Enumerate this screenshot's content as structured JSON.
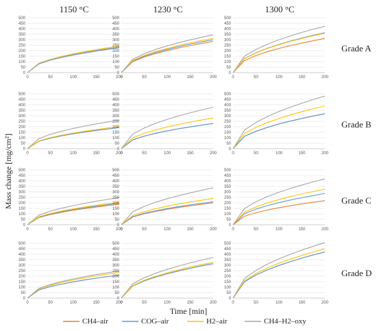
{
  "chart_data": {
    "type": "line",
    "ylabel": "Mass change [mg/cm²]",
    "xlabel": "Time [min]",
    "columns": [
      "1150 °C",
      "1230 °C",
      "1300 °C"
    ],
    "rows": [
      "Grade A",
      "Grade B",
      "Grade C",
      "Grade D"
    ],
    "xlim": [
      0,
      200
    ],
    "ylim": [
      0,
      500
    ],
    "xticks": [
      0,
      50,
      100,
      150,
      200
    ],
    "yticks": [
      0,
      50,
      100,
      150,
      200,
      250,
      300,
      350,
      400,
      450,
      500
    ],
    "grid": true,
    "legend_position": "bottom",
    "series": [
      {
        "name": "CH4–air",
        "color": "#ed7d31"
      },
      {
        "name": "COG–air",
        "color": "#5b9bd5"
      },
      {
        "name": "H2–air",
        "color": "#ffc000"
      },
      {
        "name": "CH4–H2–oxy",
        "color": "#a5a5a5"
      }
    ],
    "x": [
      0,
      25,
      50,
      75,
      100,
      125,
      150,
      175,
      200
    ],
    "panels": [
      {
        "row": "Grade A",
        "column": "1150 °C",
        "series": [
          {
            "name": "CH4–air",
            "values": [
              0,
              80,
              114,
              139,
              161,
              180,
              197,
              213,
              228
            ]
          },
          {
            "name": "COG–air",
            "values": [
              0,
              80,
              114,
              139,
              161,
              180,
              197,
              213,
              228
            ]
          },
          {
            "name": "H2–air",
            "values": [
              0,
              86,
              121,
              149,
              172,
              192,
              210,
              227,
              243
            ]
          },
          {
            "name": "CH4–H2–oxy",
            "values": [
              0,
              83,
              117,
              143,
              166,
              185,
              203,
              219,
              235
            ]
          }
        ]
      },
      {
        "row": "Grade A",
        "column": "1230 °C",
        "series": [
          {
            "name": "CH4–air",
            "values": [
              0,
              101,
              142,
              174,
              201,
              225,
              246,
              266,
              285
            ]
          },
          {
            "name": "COG–air",
            "values": [
              0,
              106,
              150,
              184,
              212,
              237,
              260,
              281,
              300
            ]
          },
          {
            "name": "H2–air",
            "values": [
              0,
              111,
              157,
              192,
              221,
              248,
              271,
              293,
              313
            ]
          },
          {
            "name": "CH4–H2–oxy",
            "values": [
              0,
              122,
              173,
              212,
              244,
              273,
              299,
              323,
              345
            ]
          }
        ]
      },
      {
        "row": "Grade A",
        "column": "1300 °C",
        "series": [
          {
            "name": "CH4–air",
            "values": [
              0,
              110,
              156,
              191,
              221,
              247,
              270,
              292,
              312
            ]
          },
          {
            "name": "COG–air",
            "values": [
              0,
              129,
              182,
              223,
              258,
              288,
              316,
              341,
              365
            ]
          },
          {
            "name": "H2–air",
            "values": [
              0,
              127,
              180,
              221,
              255,
              285,
              312,
              337,
              360
            ]
          },
          {
            "name": "CH4–H2–oxy",
            "values": [
              0,
              150,
              212,
              260,
              300,
              335,
              367,
              397,
              424
            ]
          }
        ]
      },
      {
        "row": "Grade B",
        "column": "1150 °C",
        "series": [
          {
            "name": "CH4–air",
            "values": [
              0,
              68,
              96,
              118,
              136,
              152,
              167,
              180,
              193
            ]
          },
          {
            "name": "COG–air",
            "values": [
              0,
              68,
              96,
              118,
              136,
              152,
              167,
              180,
              193
            ]
          },
          {
            "name": "H2–air",
            "values": [
              0,
              71,
              101,
              124,
              143,
              160,
              175,
              189,
              202
            ]
          },
          {
            "name": "CH4–H2–oxy",
            "values": [
              0,
              92,
              131,
              160,
              185,
              207,
              226,
              244,
              261
            ]
          }
        ]
      },
      {
        "row": "Grade B",
        "column": "1230 °C",
        "series": [
          {
            "name": "CH4–air",
            "values": [
              0,
              81,
              115,
              141,
              163,
              182,
              199,
              215,
              230
            ]
          },
          {
            "name": "COG–air",
            "values": [
              0,
              81,
              115,
              141,
              163,
              182,
              199,
              215,
              230
            ]
          },
          {
            "name": "H2–air",
            "values": [
              0,
              99,
              140,
              172,
              198,
              222,
              243,
              262,
              280
            ]
          },
          {
            "name": "CH4–H2–oxy",
            "values": [
              0,
              134,
              189,
              232,
              268,
              299,
              328,
              354,
              378
            ]
          }
        ]
      },
      {
        "row": "Grade B",
        "column": "1300 °C",
        "series": [
          {
            "name": "CH4–air",
            "values": [
              0,
              113,
              159,
              195,
              226,
              252,
              276,
              298,
              319
            ]
          },
          {
            "name": "COG–air",
            "values": [
              0,
              113,
              159,
              195,
              226,
              252,
              276,
              298,
              319
            ]
          },
          {
            "name": "H2–air",
            "values": [
              0,
              138,
              195,
              239,
              276,
              309,
              338,
              365,
              390
            ]
          },
          {
            "name": "CH4–H2–oxy",
            "values": [
              0,
              170,
              240,
              294,
              339,
              379,
              415,
              449,
              480
            ]
          }
        ]
      },
      {
        "row": "Grade C",
        "column": "1150 °C",
        "series": [
          {
            "name": "CH4–air",
            "values": [
              0,
              66,
              93,
              114,
              132,
              148,
              162,
              175,
              187
            ]
          },
          {
            "name": "COG–air",
            "values": [
              0,
              69,
              98,
              120,
              139,
              155,
              170,
              183,
              196
            ]
          },
          {
            "name": "H2–air",
            "values": [
              0,
              73,
              103,
              126,
              145,
              163,
              178,
              192,
              205
            ]
          },
          {
            "name": "CH4–H2–oxy",
            "values": [
              0,
              88,
              124,
              152,
              175,
              196,
              215,
              232,
              248
            ]
          }
        ]
      },
      {
        "row": "Grade C",
        "column": "1230 °C",
        "series": [
          {
            "name": "CH4–air",
            "values": [
              0,
              71,
              100,
              122,
              141,
              158,
              173,
              187,
              200
            ]
          },
          {
            "name": "COG–air",
            "values": [
              0,
              74,
              105,
              128,
              148,
              166,
              182,
              196,
              210
            ]
          },
          {
            "name": "H2–air",
            "values": [
              0,
              85,
              120,
              147,
              170,
              190,
              208,
              224,
              240
            ]
          },
          {
            "name": "CH4–H2–oxy",
            "values": [
              0,
              119,
              168,
              206,
              238,
              266,
              291,
              315,
              337
            ]
          }
        ]
      },
      {
        "row": "Grade C",
        "column": "1300 °C",
        "series": [
          {
            "name": "CH4–air",
            "values": [
              0,
              78,
              110,
              135,
              156,
              174,
              191,
              206,
              220
            ]
          },
          {
            "name": "COG–air",
            "values": [
              0,
              101,
              143,
              175,
              202,
              226,
              247,
              267,
              286
            ]
          },
          {
            "name": "H2–air",
            "values": [
              0,
              115,
              163,
              200,
              230,
              257,
              282,
              304,
              325
            ]
          },
          {
            "name": "CH4–H2–oxy",
            "values": [
              0,
              148,
              210,
              257,
              297,
              332,
              363,
              392,
              419
            ]
          }
        ]
      },
      {
        "row": "Grade D",
        "column": "1150 °C",
        "series": [
          {
            "name": "CH4–air",
            "values": [
              0,
              74,
              105,
              128,
              148,
              166,
              182,
              196,
              210
            ]
          },
          {
            "name": "COG–air",
            "values": [
              0,
              74,
              105,
              128,
              148,
              166,
              182,
              196,
              210
            ]
          },
          {
            "name": "H2–air",
            "values": [
              0,
              83,
              117,
              143,
              166,
              185,
              203,
              219,
              234
            ]
          },
          {
            "name": "CH4–H2–oxy",
            "values": [
              0,
              88,
              124,
              152,
              175,
              196,
              215,
              232,
              248
            ]
          }
        ]
      },
      {
        "row": "Grade D",
        "column": "1230 °C",
        "series": [
          {
            "name": "CH4–air",
            "values": [
              0,
              111,
              157,
              192,
              222,
              248,
              272,
              294,
              314
            ]
          },
          {
            "name": "COG–air",
            "values": [
              0,
              111,
              157,
              192,
              222,
              248,
              272,
              294,
              314
            ]
          },
          {
            "name": "H2–air",
            "values": [
              0,
              115,
              163,
              200,
              231,
              258,
              283,
              305,
              326
            ]
          },
          {
            "name": "CH4–H2–oxy",
            "values": [
              0,
              131,
              186,
              227,
              262,
              293,
              321,
              347,
              371
            ]
          }
        ]
      },
      {
        "row": "Grade D",
        "column": "1300 °C",
        "series": [
          {
            "name": "CH4–air",
            "values": [
              0,
              149,
              211,
              258,
              298,
              333,
              365,
              394,
              421
            ]
          },
          {
            "name": "COG–air",
            "values": [
              0,
              149,
              211,
              258,
              298,
              333,
              365,
              394,
              421
            ]
          },
          {
            "name": "H2–air",
            "values": [
              0,
              159,
              225,
              276,
              318,
              356,
              390,
              421,
              450
            ]
          },
          {
            "name": "CH4–H2–oxy",
            "values": [
              0,
              179,
              253,
              310,
              358,
              400,
              438,
              473,
              506
            ]
          }
        ]
      }
    ]
  }
}
